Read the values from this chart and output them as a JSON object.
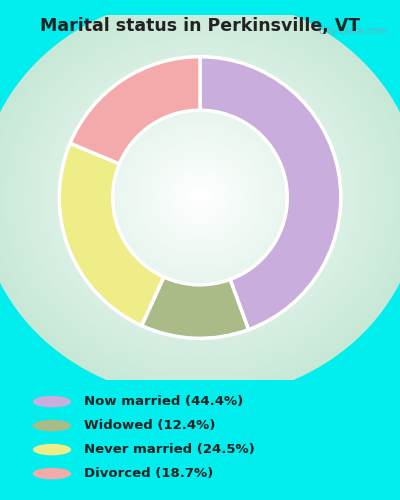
{
  "title": "Marital status in Perkinsville, VT",
  "title_fontsize": 12.5,
  "title_color": "#222222",
  "background_color": "#00EEEE",
  "chart_bg_top": "#e8f5ee",
  "chart_bg_bottom": "#c8eee0",
  "slices": [
    44.4,
    12.4,
    24.5,
    18.7
  ],
  "colors": [
    "#C9AEDD",
    "#AABB88",
    "#EEED88",
    "#F4AAAA"
  ],
  "labels": [
    "Now married (44.4%)",
    "Widowed (12.4%)",
    "Never married (24.5%)",
    "Divorced (18.7%)"
  ],
  "legend_colors": [
    "#C9AEDD",
    "#AABB88",
    "#EEED88",
    "#F4AAAA"
  ],
  "start_angle": 90,
  "figsize": [
    4.0,
    5.0
  ],
  "dpi": 100
}
